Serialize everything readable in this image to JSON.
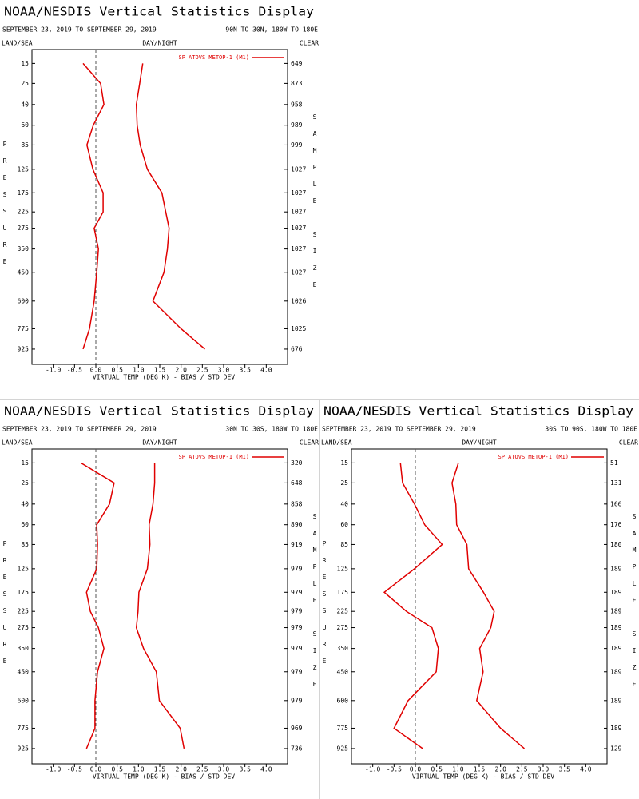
{
  "chart_data": [
    {
      "type": "line",
      "title": "NOAA/NESDIS Vertical Statistics Display",
      "date_range": "SEPTEMBER 23, 2019 TO SEPTEMBER 29, 2019",
      "region": "90N TO 30N, 180W TO 180E",
      "left_label": "LAND/SEA",
      "center_label": "DAY/NIGHT",
      "right_label": "CLEAR",
      "y_axis_label": "PRESSURE",
      "y2_axis_label": "SAMPLE SIZE",
      "x_axis_label": "VIRTUAL TEMP (DEG K) - BIAS / STD DEV",
      "xlim": [
        -1.5,
        4.5
      ],
      "xticks": [
        {
          "value": -1,
          "label": "-1.0"
        },
        {
          "value": -0.5,
          "label": "-0.5"
        },
        {
          "value": 0,
          "label": "0.0"
        },
        {
          "value": 0.5,
          "label": "0.5"
        },
        {
          "value": 1,
          "label": "1.0"
        },
        {
          "value": 1.5,
          "label": "1.5"
        },
        {
          "value": 2,
          "label": "2.0"
        },
        {
          "value": 2.5,
          "label": "2.5"
        },
        {
          "value": 3,
          "label": "3.0"
        },
        {
          "value": 3.5,
          "label": "3.5"
        },
        {
          "value": 4,
          "label": "4.0"
        }
      ],
      "ylim": [
        10,
        1050
      ],
      "yticks": [
        15,
        25,
        40,
        60,
        85,
        125,
        175,
        225,
        275,
        350,
        450,
        600,
        775,
        925
      ],
      "sample_size": [
        649,
        873,
        958,
        989,
        999,
        1027,
        1027,
        1027,
        1027,
        1027,
        1027,
        1026,
        1025,
        676
      ],
      "series": [
        {
          "name": "SP ATOVS METOP-1 (M1)",
          "color": "#e00000",
          "bias": [
            -0.3,
            0.11,
            0.19,
            -0.06,
            -0.21,
            -0.07,
            0.17,
            0.17,
            -0.04,
            0.06,
            0.02,
            -0.04,
            -0.15,
            -0.3
          ],
          "std_dev": [
            1.1,
            1.03,
            0.95,
            0.97,
            1.04,
            1.21,
            1.55,
            1.64,
            1.72,
            1.68,
            1.6,
            1.34,
            2.0,
            2.56
          ]
        }
      ]
    },
    {
      "type": "line",
      "title": "NOAA/NESDIS Vertical Statistics Display",
      "date_range": "SEPTEMBER 23, 2019 TO SEPTEMBER 29, 2019",
      "region": "30N TO 30S, 180W TO 180E",
      "left_label": "LAND/SEA",
      "center_label": "DAY/NIGHT",
      "right_label": "CLEAR",
      "y_axis_label": "PRESSURE",
      "y2_axis_label": "SAMPLE SIZE",
      "x_axis_label": "VIRTUAL TEMP (DEG K) - BIAS / STD DEV",
      "xlim": [
        -1.5,
        4.5
      ],
      "xticks": [
        {
          "value": -1,
          "label": "-1.0"
        },
        {
          "value": -0.5,
          "label": "-0.5"
        },
        {
          "value": 0,
          "label": "0.0"
        },
        {
          "value": 0.5,
          "label": "0.5"
        },
        {
          "value": 1,
          "label": "1.0"
        },
        {
          "value": 1.5,
          "label": "1.5"
        },
        {
          "value": 2,
          "label": "2.0"
        },
        {
          "value": 2.5,
          "label": "2.5"
        },
        {
          "value": 3,
          "label": "3.0"
        },
        {
          "value": 3.5,
          "label": "3.5"
        },
        {
          "value": 4,
          "label": "4.0"
        }
      ],
      "ylim": [
        10,
        1050
      ],
      "yticks": [
        15,
        25,
        40,
        60,
        85,
        125,
        175,
        225,
        275,
        350,
        450,
        600,
        775,
        925
      ],
      "sample_size": [
        320,
        648,
        858,
        890,
        919,
        979,
        979,
        979,
        979,
        979,
        979,
        979,
        969,
        736
      ],
      "series": [
        {
          "name": "SP ATOVS METOP-1 (M1)",
          "color": "#e00000",
          "bias": [
            -0.35,
            0.43,
            0.32,
            0.02,
            0.04,
            0.02,
            -0.22,
            -0.13,
            0.06,
            0.19,
            0.04,
            -0.02,
            -0.02,
            -0.22
          ],
          "std_dev": [
            1.38,
            1.38,
            1.34,
            1.25,
            1.27,
            1.21,
            1.01,
            0.99,
            0.95,
            1.12,
            1.42,
            1.49,
            1.98,
            2.07
          ]
        }
      ]
    },
    {
      "type": "line",
      "title": "NOAA/NESDIS Vertical Statistics Display",
      "date_range": "SEPTEMBER 23, 2019 TO SEPTEMBER 29, 2019",
      "region": "30S TO 90S, 180W TO 180E",
      "left_label": "LAND/SEA",
      "center_label": "DAY/NIGHT",
      "right_label": "CLEAR",
      "y_axis_label": "PRESSURE",
      "y2_axis_label": "SAMPLE SIZE",
      "x_axis_label": "VIRTUAL TEMP (DEG K) - BIAS / STD DEV",
      "xlim": [
        -1.5,
        4.5
      ],
      "xticks": [
        {
          "value": -1,
          "label": "-1.0"
        },
        {
          "value": -0.5,
          "label": "-0.5"
        },
        {
          "value": 0,
          "label": "0.0"
        },
        {
          "value": 0.5,
          "label": "0.5"
        },
        {
          "value": 1,
          "label": "1.0"
        },
        {
          "value": 1.5,
          "label": "1.5"
        },
        {
          "value": 2,
          "label": "2.0"
        },
        {
          "value": 2.5,
          "label": "2.5"
        },
        {
          "value": 3,
          "label": "3.0"
        },
        {
          "value": 3.5,
          "label": "3.5"
        },
        {
          "value": 4,
          "label": "4.0"
        }
      ],
      "ylim": [
        10,
        1050
      ],
      "yticks": [
        15,
        25,
        40,
        60,
        85,
        125,
        175,
        225,
        275,
        350,
        450,
        600,
        775,
        925
      ],
      "sample_size": [
        51,
        131,
        166,
        176,
        180,
        189,
        189,
        189,
        189,
        189,
        189,
        189,
        189,
        129
      ],
      "series": [
        {
          "name": "SP ATOVS METOP-1 (M1)",
          "color": "#e00000",
          "bias": [
            -0.35,
            -0.3,
            -0.02,
            0.22,
            0.63,
            -0.02,
            -0.73,
            -0.21,
            0.39,
            0.54,
            0.49,
            -0.17,
            -0.5,
            0.17
          ],
          "std_dev": [
            1.01,
            0.86,
            0.95,
            0.97,
            1.21,
            1.25,
            1.6,
            1.85,
            1.77,
            1.51,
            1.59,
            1.44,
            2.0,
            2.56
          ]
        }
      ]
    }
  ]
}
